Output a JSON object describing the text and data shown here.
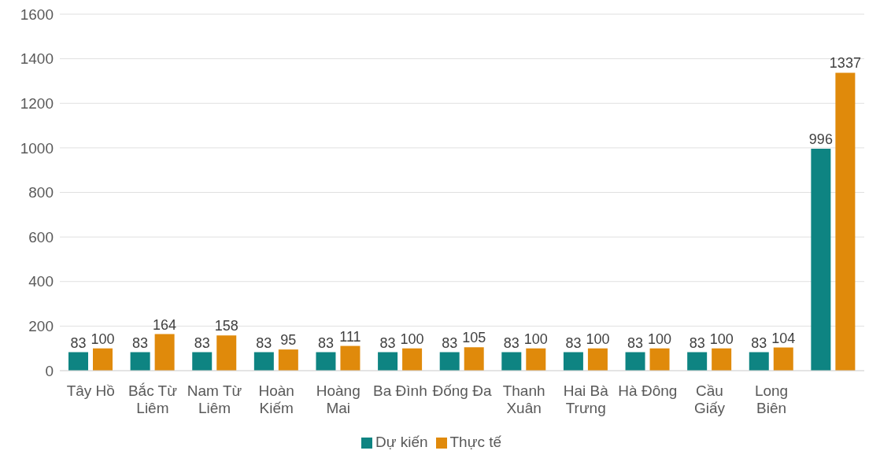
{
  "chart_data": {
    "type": "bar",
    "categories": [
      "Tây Hồ",
      "Bắc Từ Liêm",
      "Nam Từ Liêm",
      "Hoàn Kiếm",
      "Hoàng Mai",
      "Ba Đình",
      "Đống Đa",
      "Thanh Xuân",
      "Hai Bà Trưng",
      "Hà Đông",
      "Cầu Giấy",
      "Long Biên",
      null
    ],
    "series": [
      {
        "name": "Dự kiến",
        "color": "#0e8482",
        "values": [
          83,
          83,
          83,
          83,
          83,
          83,
          83,
          83,
          83,
          83,
          83,
          83,
          996
        ]
      },
      {
        "name": "Thực tế",
        "color": "#e08a0b",
        "values": [
          100,
          164,
          158,
          95,
          111,
          100,
          105,
          100,
          100,
          100,
          100,
          104,
          1337
        ]
      }
    ],
    "ylim": [
      0,
      1600
    ],
    "yticks": [
      0,
      200,
      400,
      600,
      800,
      1000,
      1200,
      1400,
      1600
    ],
    "grid": "y",
    "legend": "bottom",
    "data_labels": true
  }
}
